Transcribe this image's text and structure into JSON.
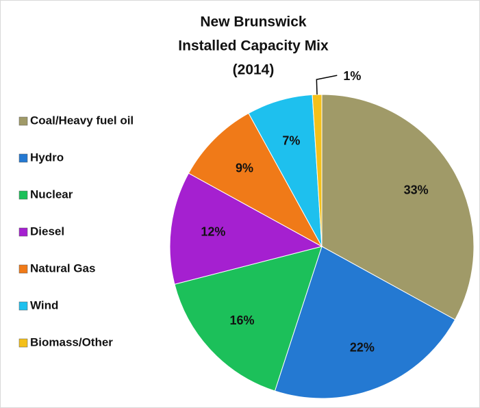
{
  "chart_data": {
    "type": "pie",
    "title": [
      "New Brunswick",
      "Installed Capacity Mix",
      "(2014)"
    ],
    "categories": [
      "Coal/Heavy fuel oil",
      "Hydro",
      "Nuclear",
      "Diesel",
      "Natural Gas",
      "Wind",
      "Biomass/Other"
    ],
    "values": [
      33,
      22,
      16,
      12,
      9,
      7,
      1
    ],
    "value_labels": [
      "33%",
      "22%",
      "16%",
      "12%",
      "9%",
      "7%",
      "1%"
    ],
    "colors": [
      "#a09a68",
      "#2479d2",
      "#1cc05a",
      "#a520d0",
      "#f07a18",
      "#1ec0ee",
      "#f4c01a"
    ],
    "legend": "left"
  }
}
